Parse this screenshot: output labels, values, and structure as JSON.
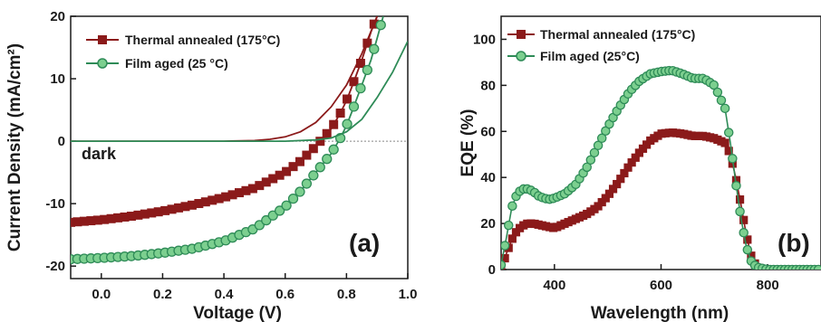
{
  "chart_data": [
    {
      "type": "line",
      "panel_label": "(a)",
      "xlabel": "Voltage (V)",
      "ylabel": "Current Density (mA/cm²)",
      "xlim": [
        -0.1,
        1.0
      ],
      "ylim": [
        -22,
        20
      ],
      "xticks": [
        0.0,
        0.2,
        0.4,
        0.6,
        0.8,
        1.0
      ],
      "xtick_labels": [
        "0.0",
        "0.2",
        "0.4",
        "0.6",
        "0.8",
        "1.0"
      ],
      "yticks": [
        -20,
        -10,
        0,
        10,
        20
      ],
      "ytick_labels": [
        "-20",
        "-10",
        "0",
        "10",
        "20"
      ],
      "zero_line": true,
      "legend_position": "top-left",
      "annotations": [
        {
          "text": "dark"
        }
      ],
      "series": [
        {
          "name": "Thermal annealed (175°C)",
          "color": "#8b1a1a",
          "marker": "square",
          "x": [
            -0.1,
            0.0,
            0.1,
            0.2,
            0.3,
            0.4,
            0.5,
            0.6,
            0.65,
            0.7,
            0.75,
            0.78,
            0.8,
            0.82,
            0.85,
            0.88,
            0.9
          ],
          "y": [
            -13.0,
            -12.6,
            -12.0,
            -11.2,
            -10.2,
            -9.0,
            -7.5,
            -5.0,
            -3.2,
            -0.8,
            2.0,
            4.5,
            6.5,
            9.0,
            13.0,
            17.5,
            20.0
          ]
        },
        {
          "name": "Film aged (25 °C)",
          "color": "#2e8b57",
          "marker": "circle",
          "x": [
            -0.1,
            0.0,
            0.1,
            0.2,
            0.3,
            0.4,
            0.5,
            0.6,
            0.65,
            0.7,
            0.75,
            0.78,
            0.8,
            0.82,
            0.85,
            0.88,
            0.9,
            0.92
          ],
          "y": [
            -18.9,
            -18.7,
            -18.4,
            -17.9,
            -17.2,
            -16.0,
            -14.0,
            -10.5,
            -8.0,
            -5.0,
            -2.0,
            0.5,
            2.5,
            5.0,
            9.0,
            13.0,
            16.5,
            20.0
          ]
        },
        {
          "name": "Thermal annealed (175°C) dark",
          "color": "#8b1a1a",
          "marker": "none",
          "x": [
            -0.1,
            0.0,
            0.2,
            0.4,
            0.5,
            0.55,
            0.6,
            0.65,
            0.7,
            0.75,
            0.8,
            0.85,
            0.9
          ],
          "y": [
            0.0,
            0.0,
            0.0,
            0.0,
            0.1,
            0.3,
            0.7,
            1.5,
            3.0,
            5.5,
            9.0,
            14.0,
            20.0
          ]
        },
        {
          "name": "Film aged (25 °C) dark",
          "color": "#2e8b57",
          "marker": "none",
          "x": [
            -0.1,
            0.0,
            0.2,
            0.4,
            0.6,
            0.65,
            0.7,
            0.75,
            0.8,
            0.85,
            0.9,
            0.95,
            1.0
          ],
          "y": [
            0.0,
            0.0,
            0.0,
            0.0,
            0.0,
            0.1,
            0.2,
            0.5,
            1.5,
            3.5,
            7.0,
            11.0,
            16.0
          ]
        }
      ]
    },
    {
      "type": "line",
      "panel_label": "(b)",
      "xlabel": "Wavelength (nm)",
      "ylabel": "EQE (%)",
      "xlim": [
        300,
        900
      ],
      "ylim": [
        0,
        110
      ],
      "xticks": [
        400,
        600,
        800
      ],
      "xtick_labels": [
        "400",
        "600",
        "800"
      ],
      "yticks": [
        0,
        20,
        40,
        60,
        80,
        100
      ],
      "ytick_labels": [
        "0",
        "20",
        "40",
        "60",
        "80",
        "100"
      ],
      "legend_position": "top-left",
      "series": [
        {
          "name": "Thermal annealed (175°C)",
          "color": "#8b1a1a",
          "marker": "square",
          "x": [
            300,
            310,
            320,
            330,
            340,
            350,
            360,
            370,
            380,
            390,
            400,
            420,
            440,
            460,
            480,
            500,
            520,
            540,
            560,
            580,
            600,
            620,
            640,
            660,
            680,
            700,
            720,
            730,
            740,
            750,
            760,
            770,
            780,
            790,
            800,
            820,
            840,
            860,
            880,
            900
          ],
          "y": [
            0,
            7,
            13,
            17,
            19,
            20,
            20,
            19.5,
            19,
            18.5,
            18,
            20,
            22,
            24,
            27,
            32,
            38,
            45,
            51,
            56,
            59,
            59.5,
            59,
            58,
            58,
            57,
            55,
            50,
            40,
            28,
            15,
            5,
            1,
            0,
            0,
            0,
            0,
            0,
            0,
            0
          ]
        },
        {
          "name": "Film aged (25°C)",
          "color": "#2e8b57",
          "marker": "circle",
          "x": [
            300,
            310,
            320,
            330,
            340,
            350,
            360,
            370,
            380,
            390,
            400,
            420,
            440,
            460,
            480,
            500,
            520,
            540,
            560,
            580,
            600,
            620,
            640,
            660,
            680,
            700,
            720,
            730,
            740,
            750,
            760,
            770,
            780,
            790,
            800,
            820,
            840,
            860,
            880,
            900
          ],
          "y": [
            2,
            14,
            27,
            33,
            35,
            35,
            34,
            32,
            31,
            30.5,
            31,
            33,
            37,
            44,
            53,
            62,
            70,
            77,
            82,
            85,
            86,
            86.5,
            85,
            83,
            83,
            80,
            70,
            55,
            38,
            22,
            10,
            3,
            1,
            0.5,
            0,
            0,
            0,
            0,
            0,
            0
          ]
        }
      ]
    }
  ]
}
